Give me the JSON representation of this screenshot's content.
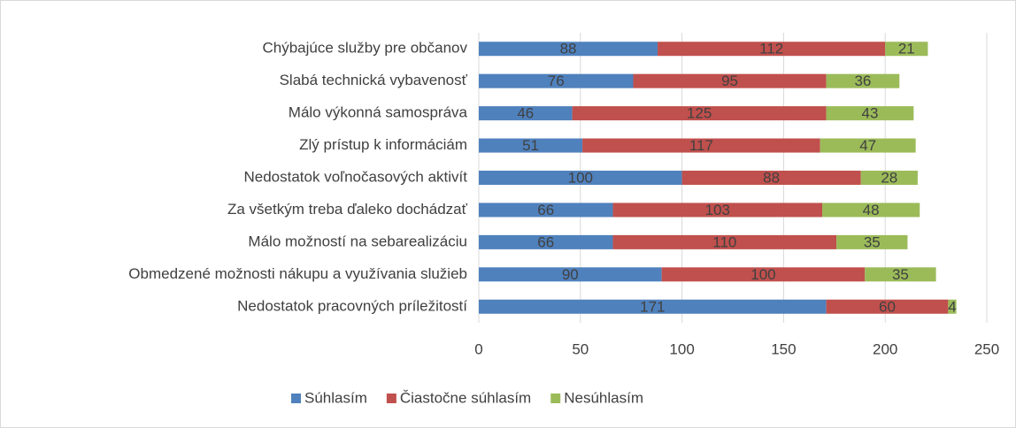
{
  "chart_data": {
    "type": "stacked-bar-horizontal",
    "categories": [
      "Chýbajúce služby pre občanov",
      "Slabá technická vybavenosť",
      "Málo výkonná samospráva",
      "Zlý prístup k informáciám",
      "Nedostatok voľnočasových aktivít",
      "Za všetkým treba ďaleko dochádzať",
      "Málo možností na sebarealizáciu",
      "Obmedzené možnosti nákupu a využívania služieb",
      "Nedostatok pracovných príležitostí"
    ],
    "series": [
      {
        "name": "Súhlasím",
        "color": "#4f81bd",
        "values": [
          88,
          76,
          46,
          51,
          100,
          66,
          66,
          90,
          171
        ]
      },
      {
        "name": "Čiastočne súhlasím",
        "color": "#c0504d",
        "values": [
          112,
          95,
          125,
          117,
          88,
          103,
          110,
          100,
          60
        ]
      },
      {
        "name": "Nesúhlasím",
        "color": "#9bbb59",
        "values": [
          21,
          36,
          43,
          47,
          28,
          48,
          35,
          35,
          4
        ]
      }
    ],
    "xlim": [
      0,
      250
    ],
    "xticks": [
      0,
      50,
      100,
      150,
      200,
      250
    ],
    "grid": true,
    "legend": "bottom"
  }
}
